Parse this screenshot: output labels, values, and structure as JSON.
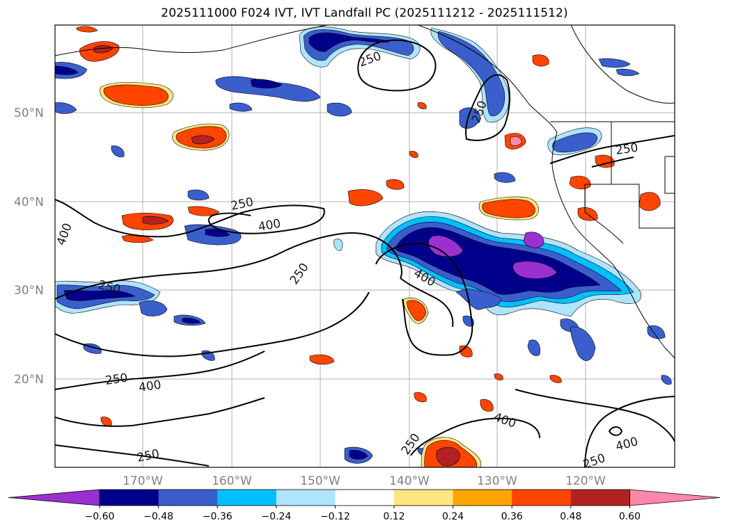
{
  "title": "2025111000 F024 IVT, IVT Landfall PC (2025111212 - 2025111512)",
  "lat_labels": [
    "50°N",
    "40°N",
    "30°N",
    "20°N"
  ],
  "lon_labels": [
    "170°W",
    "160°W",
    "150°W",
    "140°W",
    "130°W",
    "120°W"
  ],
  "contour_levels": [
    "250",
    "400"
  ],
  "colorbar": {
    "ticks": [
      "−0.60",
      "−0.48",
      "−0.36",
      "−0.24",
      "−0.12",
      "0.12",
      "0.24",
      "0.36",
      "0.48",
      "0.60"
    ],
    "colors": [
      "#9b30d0",
      "#00008b",
      "#3a5fcd",
      "#00bfff",
      "#aee4ff",
      "#ffffff",
      "#ffe680",
      "#ffa500",
      "#ff4500",
      "#b22222",
      "#ff88aa"
    ]
  },
  "fill_colors": {
    "neg_light": "#aee4ff",
    "neg_mid": "#00bfff",
    "neg_blue": "#3a5fcd",
    "neg_navy": "#00008b",
    "neg_purple": "#9b30d0",
    "pos_yellow": "#ffe680",
    "pos_orange": "#ffa500",
    "pos_red": "#ff4500",
    "pos_dark": "#b22222"
  }
}
